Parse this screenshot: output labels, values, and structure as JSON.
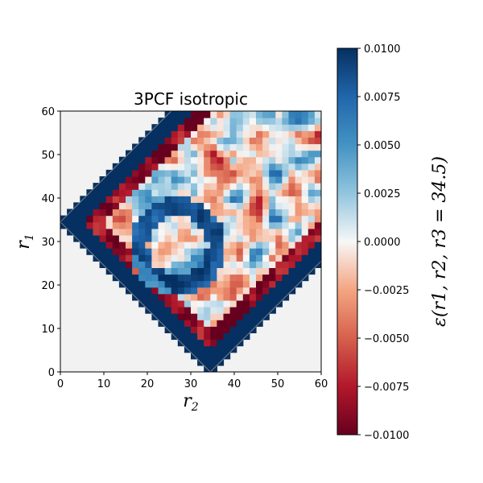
{
  "chart_data": {
    "type": "heatmap",
    "title": "3PCF isotropic",
    "xlabel": "r",
    "xlabel_sub": "2",
    "ylabel": "r",
    "ylabel_sub": "1",
    "xlim": [
      0,
      60
    ],
    "ylim": [
      0,
      60
    ],
    "x_ticks": [
      0,
      10,
      20,
      30,
      40,
      50,
      60
    ],
    "y_ticks": [
      0,
      10,
      20,
      30,
      40,
      50,
      60
    ],
    "valid_region": "|r1 - r2| <= 34.5 <= r1 + r2",
    "fixed_r3": 34.5,
    "colormap": "RdBu",
    "colorbar": {
      "label": "ε(r1, r2, r3 = 34.5)",
      "min": -0.01,
      "max": 0.01,
      "ticks": [
        "0.0100",
        "0.0075",
        "0.0050",
        "0.0025",
        "0.0000",
        "−0.0025",
        "−0.0050",
        "−0.0075",
        "−0.0100"
      ],
      "tick_values": [
        0.01,
        0.0075,
        0.005,
        0.0025,
        0.0,
        -0.0025,
        -0.005,
        -0.0075,
        -0.01
      ]
    },
    "colors": {
      "dark_red": "#67001f",
      "red": "#d6604d",
      "light_red": "#f4a582",
      "white": "#f7f7f7",
      "light_blue": "#92c5de",
      "blue": "#4393c3",
      "dark_blue": "#053061",
      "background": "#f2f2f2",
      "contour": "#808080"
    }
  }
}
